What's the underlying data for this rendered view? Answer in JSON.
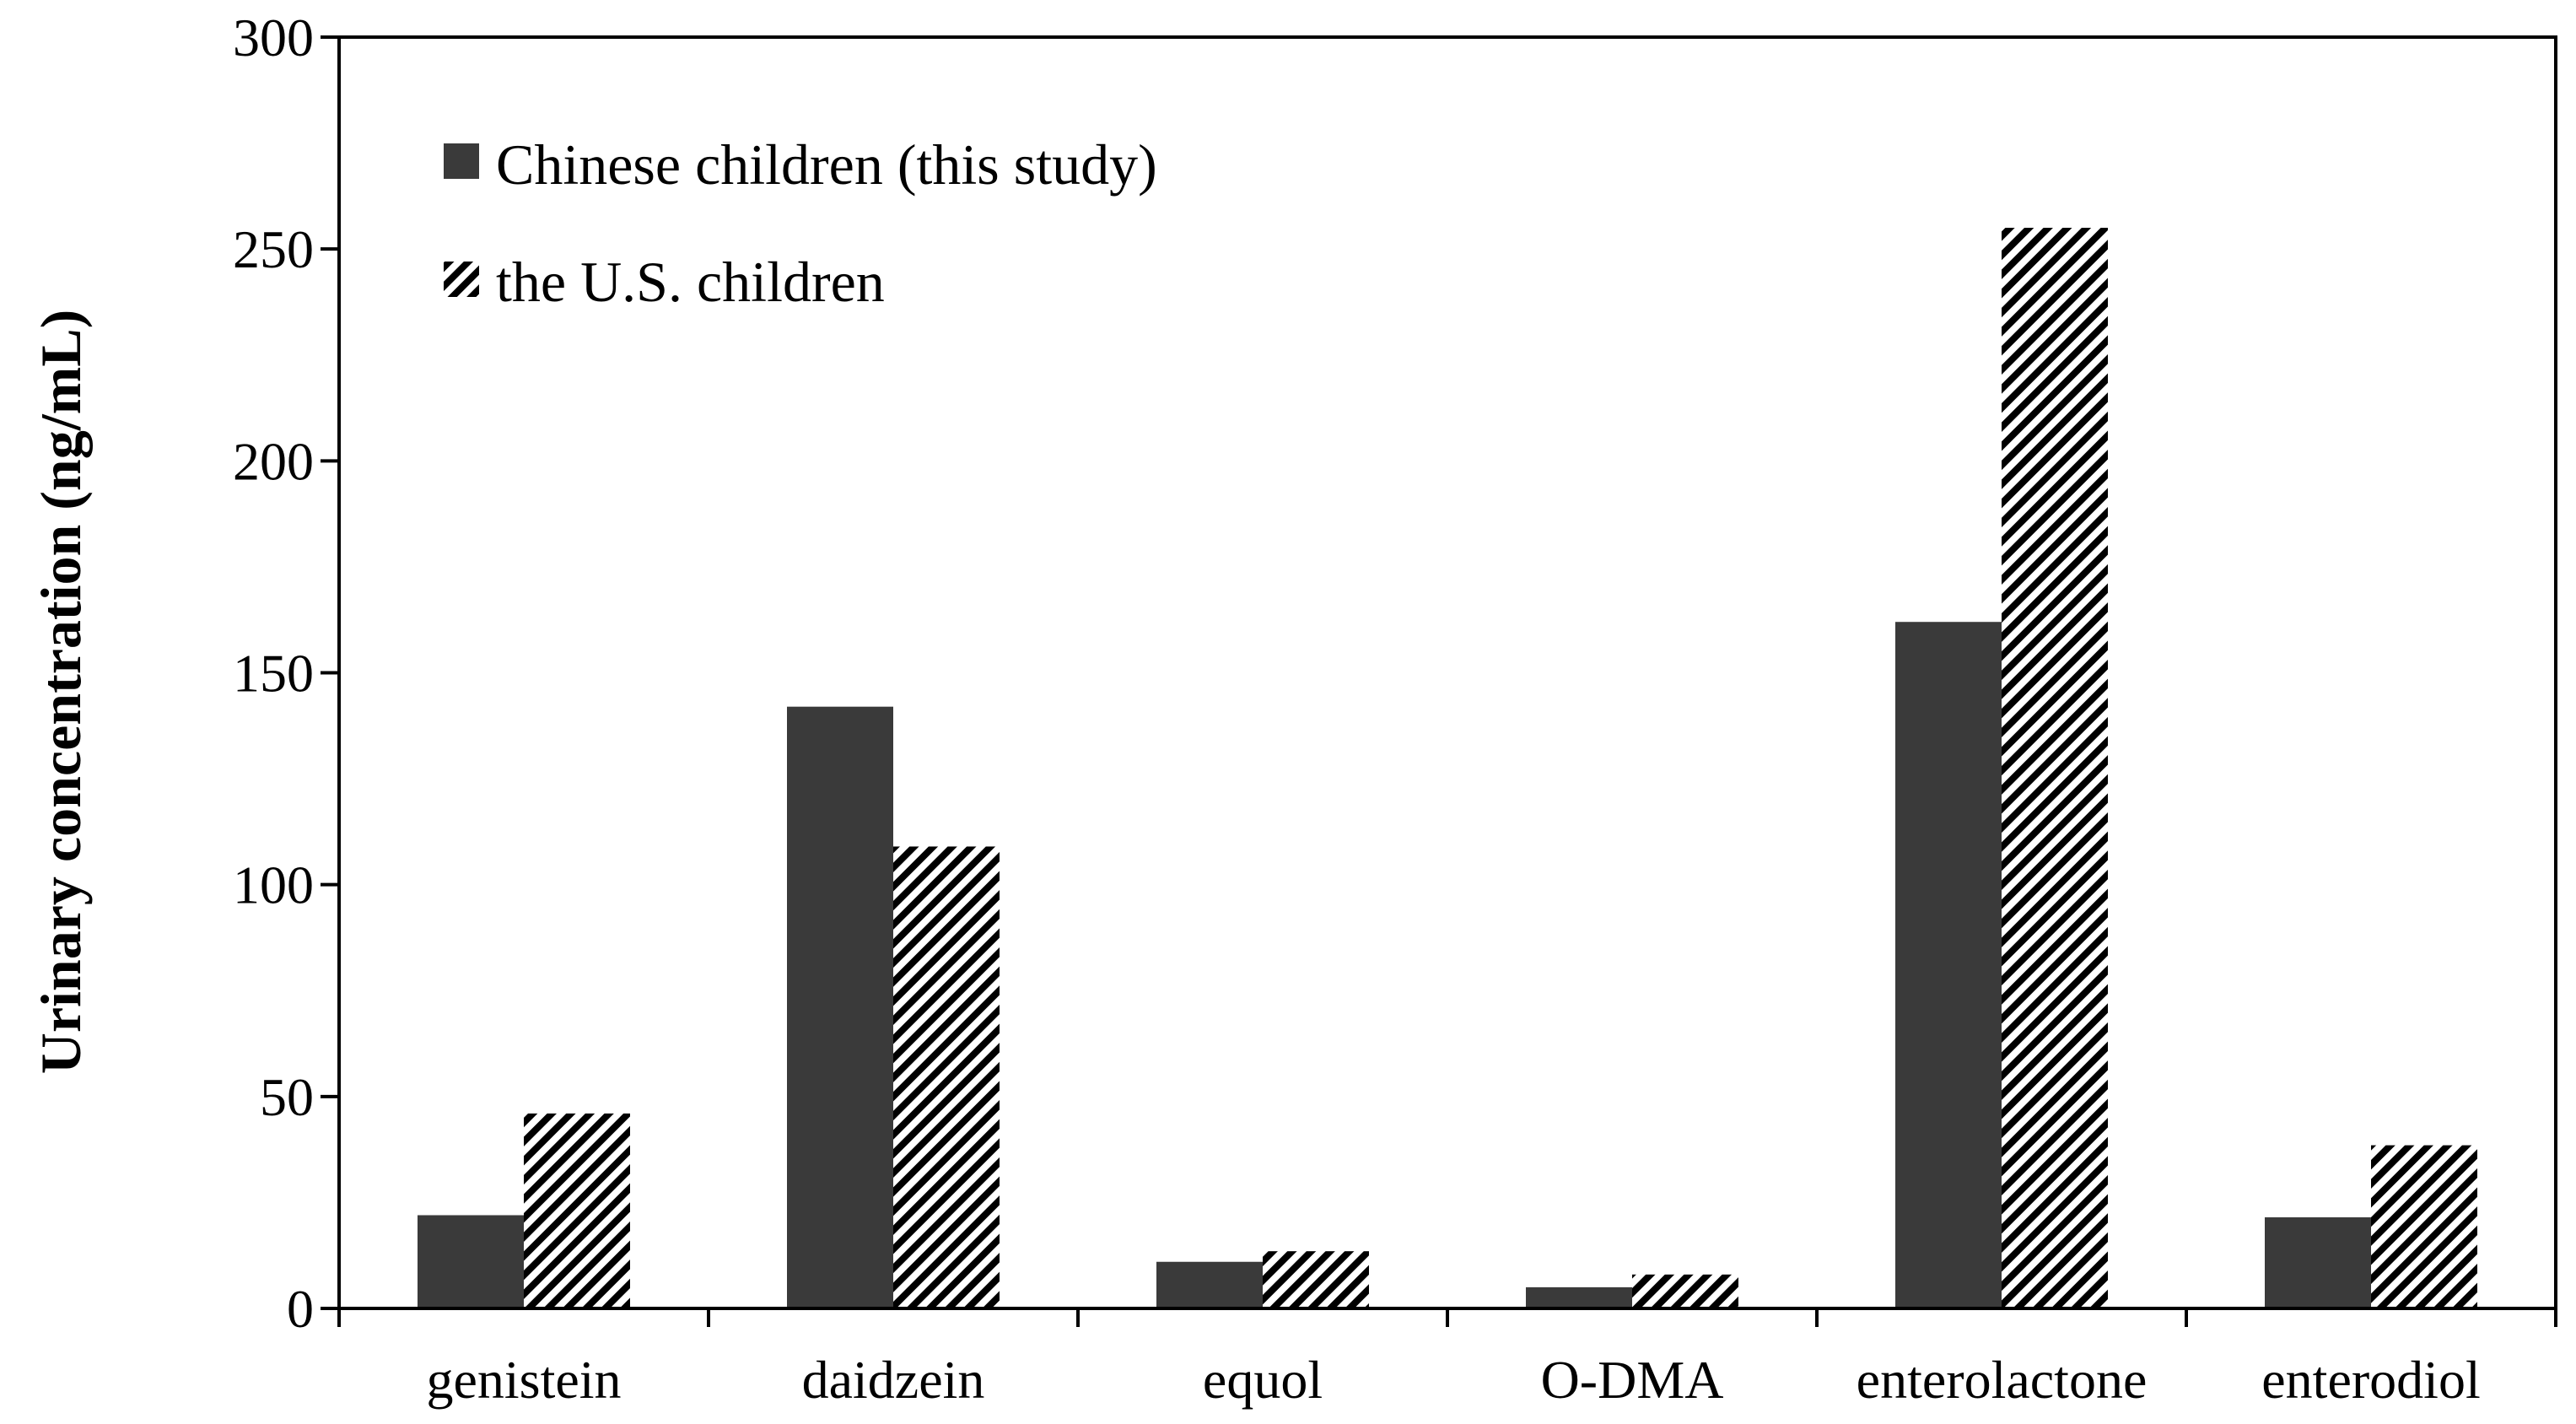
{
  "chart_data": {
    "type": "bar",
    "title": "",
    "xlabel": "",
    "ylabel": "Urinary concentration (ng/mL)",
    "ylim": [
      0,
      300
    ],
    "yticks": [
      0,
      50,
      100,
      150,
      200,
      250,
      300
    ],
    "grid": false,
    "legend_position": "top-left",
    "categories": [
      "genistein",
      "daidzein",
      "equol",
      "O-DMA",
      "enterolactone",
      "enterodiol"
    ],
    "series": [
      {
        "name": "Chinese children (this study)",
        "style": "solid",
        "color": "#3a3a3a",
        "values": [
          22,
          142,
          11,
          5,
          162,
          21.5
        ]
      },
      {
        "name": "the U.S. children",
        "style": "hatched",
        "color": "#000000",
        "values": [
          46,
          109,
          13.5,
          8,
          255,
          38.5
        ]
      }
    ]
  }
}
